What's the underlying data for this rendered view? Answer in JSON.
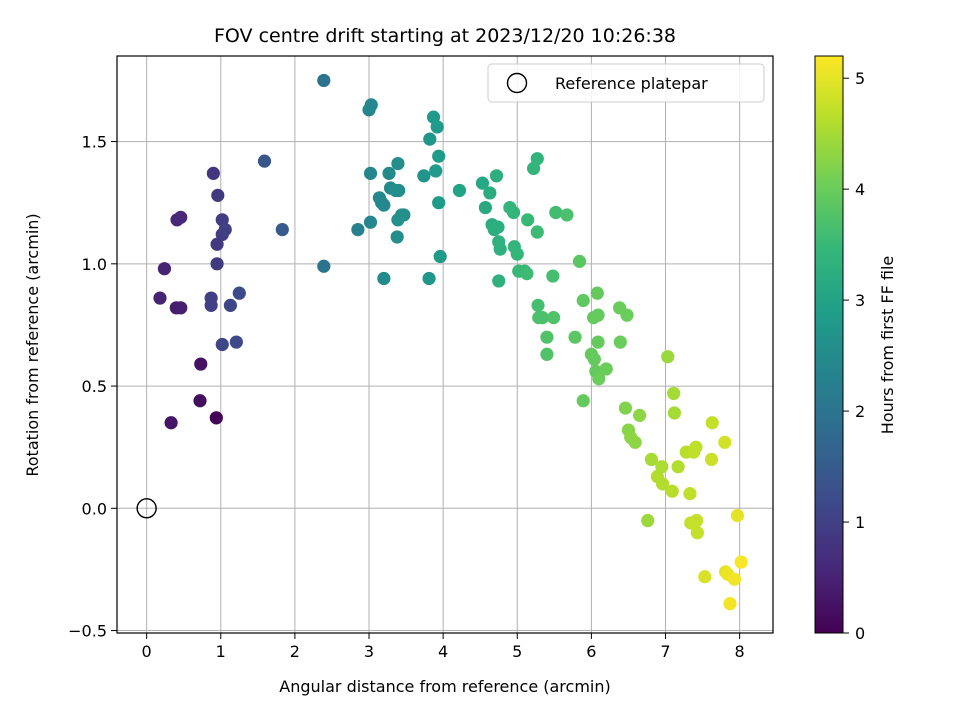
{
  "chart_data": {
    "type": "scatter",
    "title": "FOV centre drift starting at 2023/12/20 10:26:38",
    "xlabel": "Angular distance from reference (arcmin)",
    "ylabel": "Rotation from reference (arcmin)",
    "xlim": [
      -0.4,
      8.45
    ],
    "ylim": [
      -0.51,
      1.85
    ],
    "xticks": [
      0,
      1,
      2,
      3,
      4,
      5,
      6,
      7,
      8
    ],
    "yticks": [
      -0.5,
      0.0,
      0.5,
      1.0,
      1.5
    ],
    "xtick_labels": [
      "0",
      "1",
      "2",
      "3",
      "4",
      "5",
      "6",
      "7",
      "8"
    ],
    "ytick_labels": [
      "−0.5",
      "0.0",
      "0.5",
      "1.0",
      "1.5"
    ],
    "grid": true,
    "legend": {
      "position": "top-right",
      "entries": [
        "Reference platepar"
      ]
    },
    "reference_point": {
      "x": 0,
      "y": 0,
      "label": "Reference platepar"
    },
    "colorbar": {
      "label": "Hours from first FF file",
      "range": [
        0,
        5.2
      ],
      "ticks": [
        0,
        1,
        2,
        3,
        4,
        5
      ],
      "tick_labels": [
        "0",
        "1",
        "2",
        "3",
        "4",
        "5"
      ],
      "colormap": [
        "#440154",
        "#482878",
        "#3e4989",
        "#31688e",
        "#26828e",
        "#1f9e89",
        "#35b779",
        "#6ece58",
        "#b5de2b",
        "#fde725"
      ]
    },
    "points": [
      {
        "x": 0.94,
        "y": 0.37,
        "t": 0.05
      },
      {
        "x": 0.33,
        "y": 0.35,
        "t": 0.3
      },
      {
        "x": 0.72,
        "y": 0.44,
        "t": 0.2
      },
      {
        "x": 0.73,
        "y": 0.59,
        "t": 0.25
      },
      {
        "x": 0.4,
        "y": 0.82,
        "t": 0.4
      },
      {
        "x": 0.46,
        "y": 0.82,
        "t": 0.45
      },
      {
        "x": 0.18,
        "y": 0.86,
        "t": 0.5
      },
      {
        "x": 0.24,
        "y": 0.98,
        "t": 0.5
      },
      {
        "x": 0.41,
        "y": 1.18,
        "t": 0.55
      },
      {
        "x": 0.46,
        "y": 1.19,
        "t": 0.6
      },
      {
        "x": 0.9,
        "y": 1.37,
        "t": 0.8
      },
      {
        "x": 0.96,
        "y": 1.28,
        "t": 0.9
      },
      {
        "x": 0.95,
        "y": 1.08,
        "t": 0.9
      },
      {
        "x": 0.95,
        "y": 1.0,
        "t": 0.9
      },
      {
        "x": 1.02,
        "y": 1.12,
        "t": 0.95
      },
      {
        "x": 1.02,
        "y": 1.18,
        "t": 0.95
      },
      {
        "x": 1.06,
        "y": 1.14,
        "t": 1.0
      },
      {
        "x": 0.87,
        "y": 0.86,
        "t": 1.0
      },
      {
        "x": 0.87,
        "y": 0.83,
        "t": 1.0
      },
      {
        "x": 1.02,
        "y": 0.67,
        "t": 1.1
      },
      {
        "x": 1.13,
        "y": 0.83,
        "t": 1.1
      },
      {
        "x": 1.21,
        "y": 0.68,
        "t": 1.15
      },
      {
        "x": 1.25,
        "y": 0.88,
        "t": 1.2
      },
      {
        "x": 1.59,
        "y": 1.42,
        "t": 1.4
      },
      {
        "x": 1.83,
        "y": 1.14,
        "t": 1.5
      },
      {
        "x": 2.39,
        "y": 1.75,
        "t": 2.0
      },
      {
        "x": 2.39,
        "y": 0.99,
        "t": 2.0
      },
      {
        "x": 2.85,
        "y": 1.14,
        "t": 2.3
      },
      {
        "x": 3.0,
        "y": 1.63,
        "t": 2.4
      },
      {
        "x": 3.03,
        "y": 1.65,
        "t": 2.4
      },
      {
        "x": 3.02,
        "y": 1.37,
        "t": 2.4
      },
      {
        "x": 3.02,
        "y": 1.17,
        "t": 2.4
      },
      {
        "x": 3.14,
        "y": 1.27,
        "t": 2.45
      },
      {
        "x": 3.17,
        "y": 1.25,
        "t": 2.45
      },
      {
        "x": 3.2,
        "y": 1.24,
        "t": 2.45
      },
      {
        "x": 3.2,
        "y": 0.94,
        "t": 2.5
      },
      {
        "x": 3.27,
        "y": 1.37,
        "t": 2.5
      },
      {
        "x": 3.29,
        "y": 1.31,
        "t": 2.5
      },
      {
        "x": 3.36,
        "y": 1.3,
        "t": 2.55
      },
      {
        "x": 3.39,
        "y": 1.41,
        "t": 2.55
      },
      {
        "x": 3.4,
        "y": 1.3,
        "t": 2.55
      },
      {
        "x": 3.38,
        "y": 1.11,
        "t": 2.55
      },
      {
        "x": 3.39,
        "y": 1.18,
        "t": 2.6
      },
      {
        "x": 3.44,
        "y": 1.2,
        "t": 2.6
      },
      {
        "x": 3.47,
        "y": 1.2,
        "t": 2.6
      },
      {
        "x": 3.74,
        "y": 1.36,
        "t": 2.7
      },
      {
        "x": 3.82,
        "y": 1.51,
        "t": 2.75
      },
      {
        "x": 3.81,
        "y": 0.94,
        "t": 2.75
      },
      {
        "x": 3.87,
        "y": 1.6,
        "t": 2.8
      },
      {
        "x": 3.92,
        "y": 1.56,
        "t": 2.8
      },
      {
        "x": 3.9,
        "y": 1.38,
        "t": 2.8
      },
      {
        "x": 3.94,
        "y": 1.44,
        "t": 2.85
      },
      {
        "x": 3.94,
        "y": 1.25,
        "t": 2.85
      },
      {
        "x": 3.96,
        "y": 1.03,
        "t": 2.85
      },
      {
        "x": 4.22,
        "y": 1.3,
        "t": 3.0
      },
      {
        "x": 4.53,
        "y": 1.33,
        "t": 3.1
      },
      {
        "x": 4.57,
        "y": 1.23,
        "t": 3.15
      },
      {
        "x": 4.63,
        "y": 1.29,
        "t": 3.2
      },
      {
        "x": 4.66,
        "y": 1.16,
        "t": 3.2
      },
      {
        "x": 4.69,
        "y": 1.14,
        "t": 3.25
      },
      {
        "x": 4.72,
        "y": 1.36,
        "t": 3.25
      },
      {
        "x": 4.74,
        "y": 1.15,
        "t": 3.25
      },
      {
        "x": 4.75,
        "y": 1.09,
        "t": 3.3
      },
      {
        "x": 4.77,
        "y": 1.06,
        "t": 3.3
      },
      {
        "x": 4.75,
        "y": 0.93,
        "t": 3.3
      },
      {
        "x": 4.9,
        "y": 1.23,
        "t": 3.4
      },
      {
        "x": 4.95,
        "y": 1.21,
        "t": 3.4
      },
      {
        "x": 4.96,
        "y": 1.07,
        "t": 3.4
      },
      {
        "x": 5.0,
        "y": 1.04,
        "t": 3.45
      },
      {
        "x": 5.02,
        "y": 0.97,
        "t": 3.5
      },
      {
        "x": 5.1,
        "y": 0.97,
        "t": 3.5
      },
      {
        "x": 5.13,
        "y": 0.96,
        "t": 3.55
      },
      {
        "x": 5.14,
        "y": 1.18,
        "t": 3.5
      },
      {
        "x": 5.22,
        "y": 1.39,
        "t": 3.4
      },
      {
        "x": 5.27,
        "y": 1.43,
        "t": 3.4
      },
      {
        "x": 5.27,
        "y": 1.13,
        "t": 3.55
      },
      {
        "x": 5.28,
        "y": 0.83,
        "t": 3.65
      },
      {
        "x": 5.29,
        "y": 0.78,
        "t": 3.7
      },
      {
        "x": 5.34,
        "y": 0.78,
        "t": 3.7
      },
      {
        "x": 5.4,
        "y": 0.7,
        "t": 3.75
      },
      {
        "x": 5.4,
        "y": 0.63,
        "t": 3.75
      },
      {
        "x": 5.48,
        "y": 0.95,
        "t": 3.65
      },
      {
        "x": 5.49,
        "y": 0.78,
        "t": 3.75
      },
      {
        "x": 5.52,
        "y": 1.21,
        "t": 3.6
      },
      {
        "x": 5.67,
        "y": 1.2,
        "t": 3.7
      },
      {
        "x": 5.78,
        "y": 0.7,
        "t": 3.85
      },
      {
        "x": 5.84,
        "y": 1.01,
        "t": 3.85
      },
      {
        "x": 5.89,
        "y": 0.85,
        "t": 3.9
      },
      {
        "x": 5.89,
        "y": 0.44,
        "t": 3.95
      },
      {
        "x": 6.0,
        "y": 0.63,
        "t": 3.95
      },
      {
        "x": 6.03,
        "y": 0.78,
        "t": 3.95
      },
      {
        "x": 6.04,
        "y": 0.61,
        "t": 3.95
      },
      {
        "x": 6.06,
        "y": 0.56,
        "t": 3.95
      },
      {
        "x": 6.08,
        "y": 0.88,
        "t": 3.95
      },
      {
        "x": 6.09,
        "y": 0.79,
        "t": 3.95
      },
      {
        "x": 6.09,
        "y": 0.68,
        "t": 3.95
      },
      {
        "x": 6.1,
        "y": 0.53,
        "t": 4.0
      },
      {
        "x": 6.2,
        "y": 0.57,
        "t": 4.0
      },
      {
        "x": 6.38,
        "y": 0.82,
        "t": 4.0
      },
      {
        "x": 6.39,
        "y": 0.68,
        "t": 4.0
      },
      {
        "x": 6.48,
        "y": 0.79,
        "t": 4.0
      },
      {
        "x": 6.46,
        "y": 0.41,
        "t": 4.2
      },
      {
        "x": 6.5,
        "y": 0.32,
        "t": 4.25
      },
      {
        "x": 6.53,
        "y": 0.29,
        "t": 4.3
      },
      {
        "x": 6.59,
        "y": 0.27,
        "t": 4.3
      },
      {
        "x": 6.65,
        "y": 0.38,
        "t": 4.3
      },
      {
        "x": 6.76,
        "y": -0.05,
        "t": 4.4
      },
      {
        "x": 6.81,
        "y": 0.2,
        "t": 4.5
      },
      {
        "x": 6.89,
        "y": 0.13,
        "t": 4.6
      },
      {
        "x": 6.95,
        "y": 0.17,
        "t": 4.55
      },
      {
        "x": 6.96,
        "y": 0.1,
        "t": 4.6
      },
      {
        "x": 7.03,
        "y": 0.62,
        "t": 4.4
      },
      {
        "x": 7.09,
        "y": 0.07,
        "t": 4.65
      },
      {
        "x": 7.11,
        "y": 0.47,
        "t": 4.5
      },
      {
        "x": 7.12,
        "y": 0.39,
        "t": 4.5
      },
      {
        "x": 7.17,
        "y": 0.17,
        "t": 4.6
      },
      {
        "x": 7.28,
        "y": 0.23,
        "t": 4.65
      },
      {
        "x": 7.33,
        "y": 0.06,
        "t": 4.7
      },
      {
        "x": 7.34,
        "y": -0.06,
        "t": 4.75
      },
      {
        "x": 7.38,
        "y": 0.23,
        "t": 4.7
      },
      {
        "x": 7.41,
        "y": 0.25,
        "t": 4.7
      },
      {
        "x": 7.42,
        "y": -0.05,
        "t": 4.75
      },
      {
        "x": 7.43,
        "y": -0.1,
        "t": 4.75
      },
      {
        "x": 7.53,
        "y": -0.28,
        "t": 4.9
      },
      {
        "x": 7.62,
        "y": 0.2,
        "t": 4.8
      },
      {
        "x": 7.63,
        "y": 0.35,
        "t": 4.75
      },
      {
        "x": 7.8,
        "y": 0.27,
        "t": 4.85
      },
      {
        "x": 7.81,
        "y": -0.26,
        "t": 5.0
      },
      {
        "x": 7.84,
        "y": -0.27,
        "t": 5.05
      },
      {
        "x": 7.87,
        "y": -0.39,
        "t": 5.1
      },
      {
        "x": 7.93,
        "y": -0.29,
        "t": 5.1
      },
      {
        "x": 7.97,
        "y": -0.03,
        "t": 5.0
      },
      {
        "x": 8.02,
        "y": -0.22,
        "t": 5.15
      }
    ]
  }
}
